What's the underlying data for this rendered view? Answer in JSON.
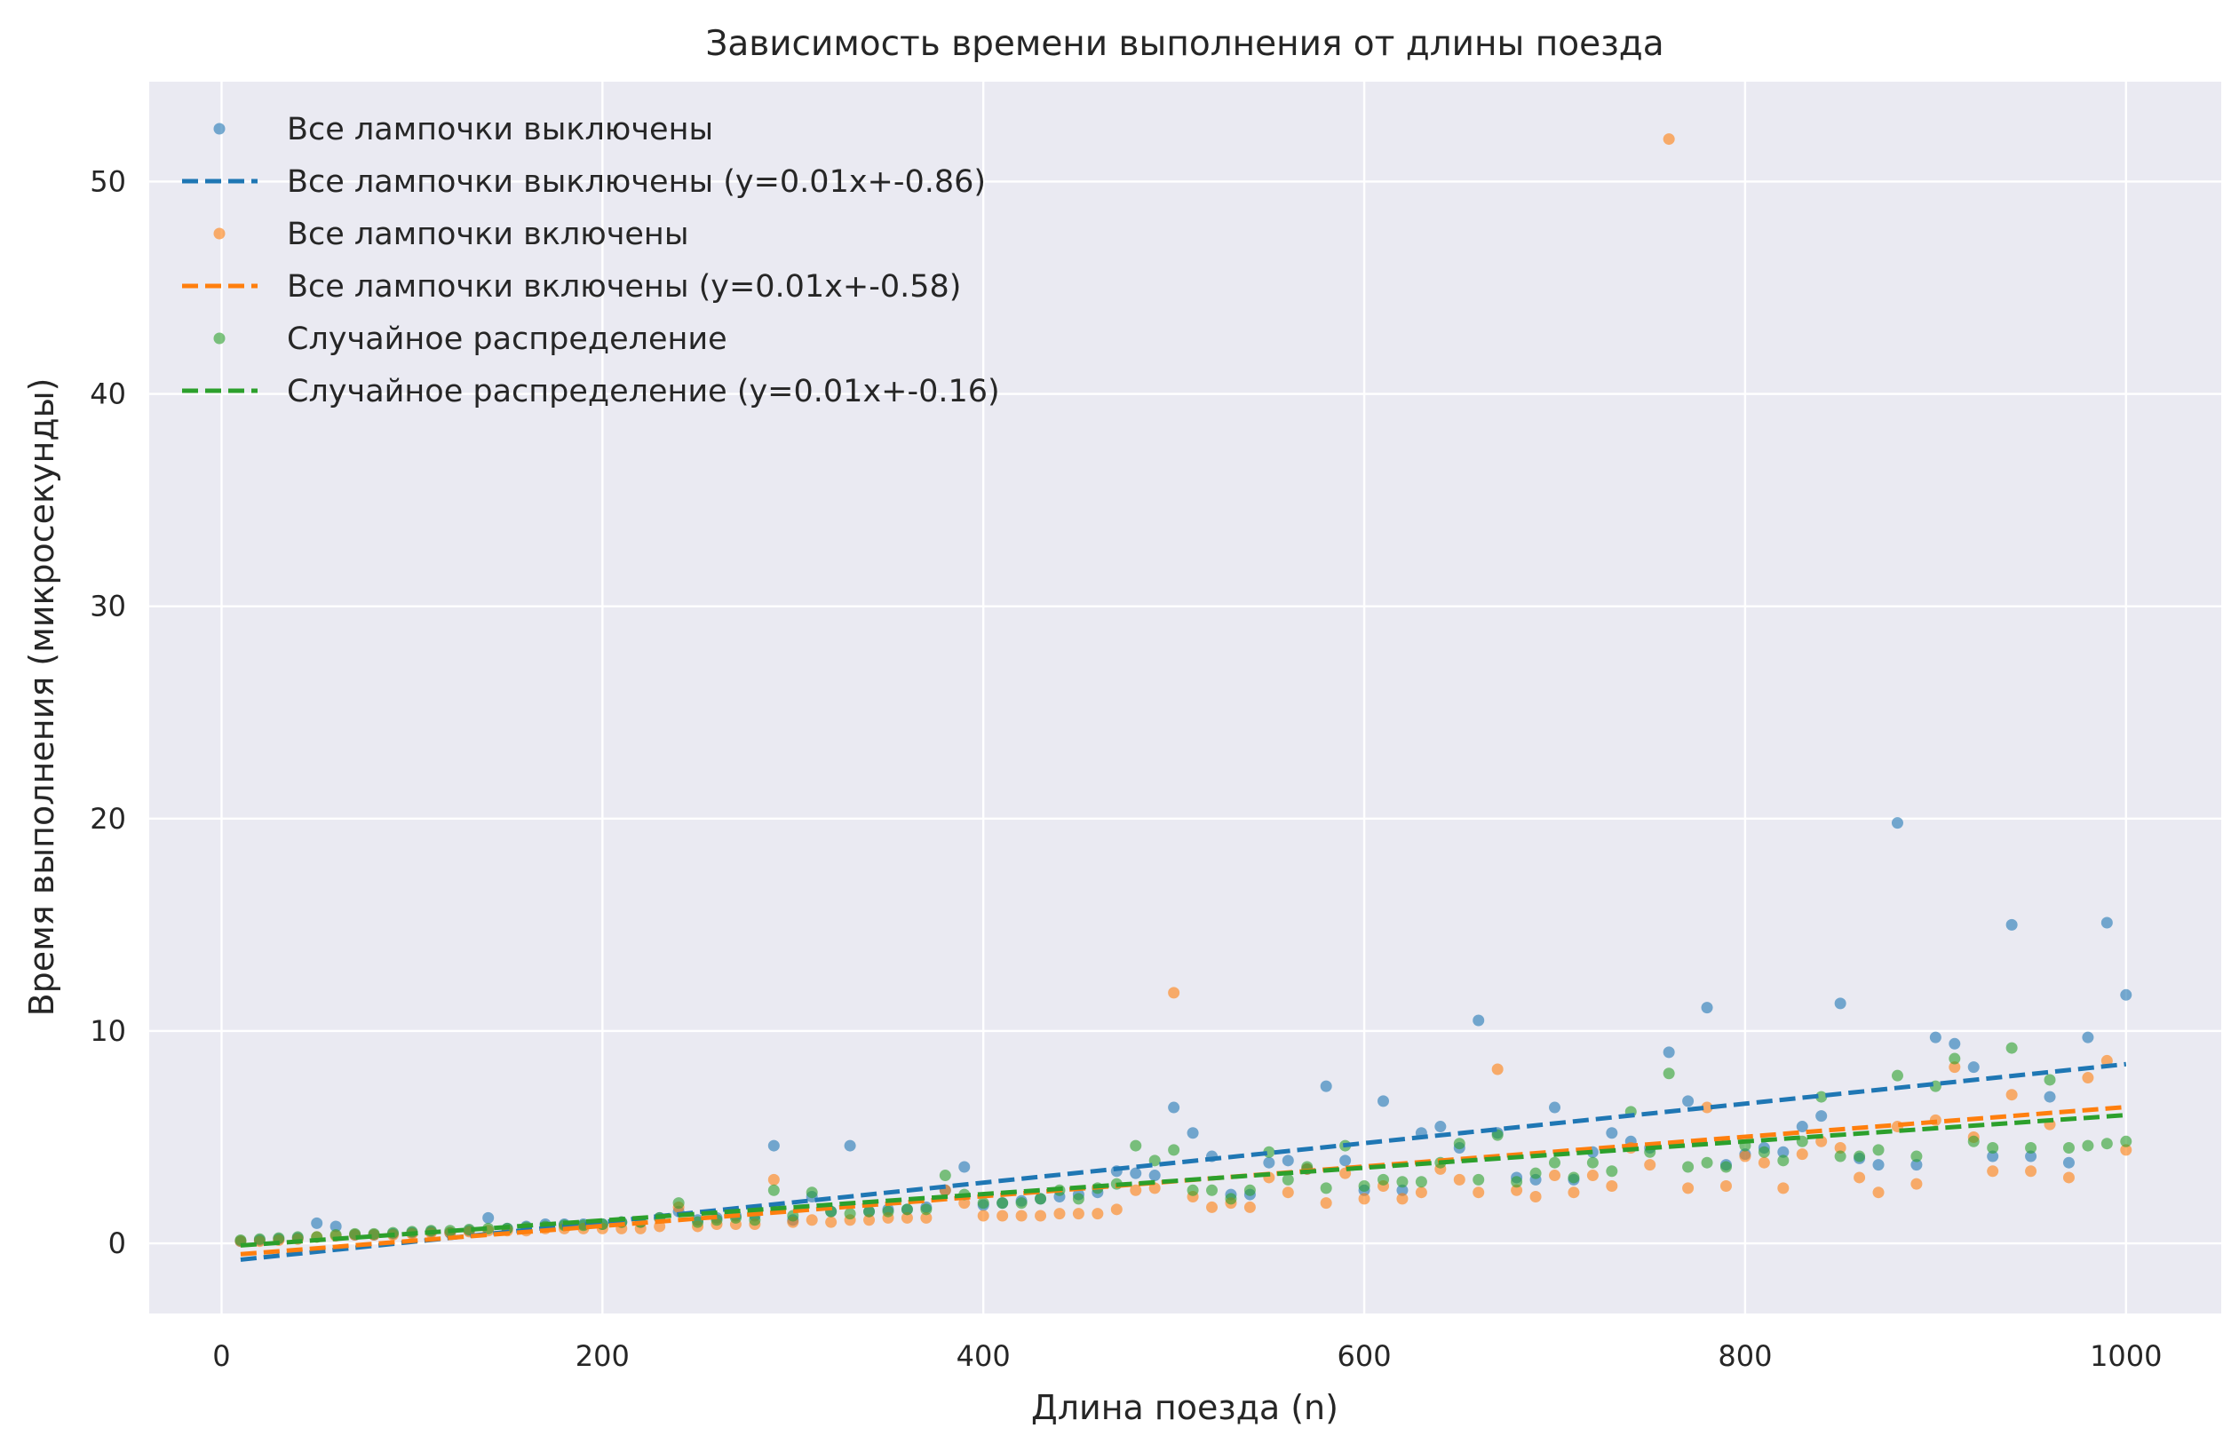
{
  "chart_data": {
    "type": "scatter",
    "title": "Зависимость времени выполнения от длины поезда",
    "xlabel": "Длина поезда (n)",
    "ylabel": "Время выполнения (микросекунды)",
    "xlim": [
      -38,
      1050
    ],
    "ylim": [
      -3.3,
      54.7
    ],
    "xticks": [
      0,
      200,
      400,
      600,
      800,
      1000
    ],
    "yticks": [
      0,
      10,
      20,
      30,
      40,
      50
    ],
    "grid": true,
    "legend": "top-left",
    "colors": {
      "background": "#eaeaf2",
      "grid": "#ffffff",
      "blue": "#1f77b4",
      "orange": "#ff7f0e",
      "green": "#2ca02c"
    },
    "series": [
      {
        "name": "Все лампочки выключены",
        "color": "#1f77b4",
        "fit_label": "Все лампочки выключены (y=0.01x+-0.86)",
        "fit": {
          "slope": 0.0093,
          "intercept": -0.86
        },
        "points": [
          [
            10,
            0.1
          ],
          [
            20,
            0.15
          ],
          [
            30,
            0.2
          ],
          [
            40,
            0.25
          ],
          [
            50,
            0.95
          ],
          [
            60,
            0.8
          ],
          [
            70,
            0.4
          ],
          [
            80,
            0.4
          ],
          [
            90,
            0.45
          ],
          [
            100,
            0.5
          ],
          [
            110,
            0.55
          ],
          [
            120,
            0.5
          ],
          [
            130,
            0.6
          ],
          [
            140,
            1.2
          ],
          [
            150,
            0.7
          ],
          [
            160,
            0.8
          ],
          [
            170,
            0.9
          ],
          [
            180,
            0.9
          ],
          [
            190,
            0.9
          ],
          [
            200,
            0.9
          ],
          [
            210,
            1.0
          ],
          [
            220,
            1.0
          ],
          [
            230,
            1.2
          ],
          [
            240,
            1.5
          ],
          [
            250,
            1.1
          ],
          [
            260,
            1.2
          ],
          [
            270,
            1.3
          ],
          [
            280,
            1.3
          ],
          [
            290,
            4.6
          ],
          [
            300,
            1.1
          ],
          [
            310,
            2.2
          ],
          [
            320,
            1.5
          ],
          [
            330,
            4.6
          ],
          [
            340,
            1.5
          ],
          [
            350,
            1.6
          ],
          [
            360,
            1.6
          ],
          [
            370,
            1.7
          ],
          [
            380,
            2.5
          ],
          [
            390,
            3.6
          ],
          [
            400,
            1.8
          ],
          [
            410,
            1.9
          ],
          [
            420,
            2.0
          ],
          [
            430,
            2.1
          ],
          [
            440,
            2.2
          ],
          [
            450,
            2.3
          ],
          [
            460,
            2.4
          ],
          [
            470,
            3.4
          ],
          [
            480,
            3.3
          ],
          [
            490,
            3.2
          ],
          [
            500,
            6.4
          ],
          [
            510,
            5.2
          ],
          [
            520,
            4.1
          ],
          [
            530,
            2.3
          ],
          [
            540,
            2.3
          ],
          [
            550,
            3.8
          ],
          [
            560,
            3.9
          ],
          [
            570,
            3.5
          ],
          [
            580,
            7.4
          ],
          [
            590,
            3.9
          ],
          [
            600,
            2.5
          ],
          [
            610,
            6.7
          ],
          [
            620,
            2.5
          ],
          [
            630,
            5.2
          ],
          [
            640,
            5.5
          ],
          [
            650,
            4.5
          ],
          [
            660,
            10.5
          ],
          [
            670,
            5.2
          ],
          [
            680,
            3.1
          ],
          [
            690,
            3.0
          ],
          [
            700,
            6.4
          ],
          [
            710,
            3.0
          ],
          [
            720,
            4.3
          ],
          [
            730,
            5.2
          ],
          [
            740,
            4.8
          ],
          [
            750,
            4.5
          ],
          [
            760,
            9.0
          ],
          [
            770,
            6.7
          ],
          [
            780,
            11.1
          ],
          [
            790,
            3.7
          ],
          [
            800,
            4.2
          ],
          [
            810,
            4.5
          ],
          [
            820,
            4.3
          ],
          [
            830,
            5.5
          ],
          [
            840,
            6.0
          ],
          [
            850,
            11.3
          ],
          [
            860,
            4.0
          ],
          [
            870,
            3.7
          ],
          [
            880,
            19.8
          ],
          [
            890,
            3.7
          ],
          [
            900,
            9.7
          ],
          [
            910,
            9.4
          ],
          [
            920,
            8.3
          ],
          [
            930,
            4.1
          ],
          [
            940,
            15.0
          ],
          [
            950,
            4.1
          ],
          [
            960,
            6.9
          ],
          [
            970,
            3.8
          ],
          [
            980,
            9.7
          ],
          [
            990,
            15.1
          ],
          [
            1000,
            11.7
          ]
        ]
      },
      {
        "name": "Все лампочки включены",
        "color": "#ff7f0e",
        "fit_label": "Все лампочки включены (y=0.01x+-0.58)",
        "fit": {
          "slope": 0.007,
          "intercept": -0.58
        },
        "points": [
          [
            10,
            0.1
          ],
          [
            20,
            0.1
          ],
          [
            30,
            0.15
          ],
          [
            40,
            0.2
          ],
          [
            50,
            0.3
          ],
          [
            60,
            0.35
          ],
          [
            70,
            0.4
          ],
          [
            80,
            0.4
          ],
          [
            90,
            0.4
          ],
          [
            100,
            0.45
          ],
          [
            110,
            0.5
          ],
          [
            120,
            0.5
          ],
          [
            130,
            0.55
          ],
          [
            140,
            0.6
          ],
          [
            150,
            0.6
          ],
          [
            160,
            0.6
          ],
          [
            170,
            0.7
          ],
          [
            180,
            0.7
          ],
          [
            190,
            0.7
          ],
          [
            200,
            0.7
          ],
          [
            210,
            0.7
          ],
          [
            220,
            0.7
          ],
          [
            230,
            0.8
          ],
          [
            240,
            1.7
          ],
          [
            250,
            0.8
          ],
          [
            260,
            0.9
          ],
          [
            270,
            0.9
          ],
          [
            280,
            0.9
          ],
          [
            290,
            3.0
          ],
          [
            300,
            1.0
          ],
          [
            310,
            1.1
          ],
          [
            320,
            1.0
          ],
          [
            330,
            1.1
          ],
          [
            340,
            1.1
          ],
          [
            350,
            1.2
          ],
          [
            360,
            1.2
          ],
          [
            370,
            1.2
          ],
          [
            380,
            2.5
          ],
          [
            390,
            1.9
          ],
          [
            400,
            1.3
          ],
          [
            410,
            1.3
          ],
          [
            420,
            1.3
          ],
          [
            430,
            1.3
          ],
          [
            440,
            1.4
          ],
          [
            450,
            1.4
          ],
          [
            460,
            1.4
          ],
          [
            470,
            1.6
          ],
          [
            480,
            2.5
          ],
          [
            490,
            2.6
          ],
          [
            500,
            11.8
          ],
          [
            510,
            2.2
          ],
          [
            520,
            1.7
          ],
          [
            530,
            1.9
          ],
          [
            540,
            1.7
          ],
          [
            550,
            3.1
          ],
          [
            560,
            2.4
          ],
          [
            570,
            3.5
          ],
          [
            580,
            1.9
          ],
          [
            590,
            3.3
          ],
          [
            600,
            2.1
          ],
          [
            610,
            2.7
          ],
          [
            620,
            2.1
          ],
          [
            630,
            2.4
          ],
          [
            640,
            3.5
          ],
          [
            650,
            3.0
          ],
          [
            660,
            2.4
          ],
          [
            670,
            8.2
          ],
          [
            680,
            2.5
          ],
          [
            690,
            2.2
          ],
          [
            700,
            3.2
          ],
          [
            710,
            2.4
          ],
          [
            720,
            3.2
          ],
          [
            730,
            2.7
          ],
          [
            740,
            4.5
          ],
          [
            750,
            3.7
          ],
          [
            760,
            52.0
          ],
          [
            770,
            2.6
          ],
          [
            780,
            6.4
          ],
          [
            790,
            2.7
          ],
          [
            800,
            4.1
          ],
          [
            810,
            3.8
          ],
          [
            820,
            2.6
          ],
          [
            830,
            4.2
          ],
          [
            840,
            4.8
          ],
          [
            850,
            4.5
          ],
          [
            860,
            3.1
          ],
          [
            870,
            2.4
          ],
          [
            880,
            5.5
          ],
          [
            890,
            2.8
          ],
          [
            900,
            5.8
          ],
          [
            910,
            8.3
          ],
          [
            920,
            5.0
          ],
          [
            930,
            3.4
          ],
          [
            940,
            7.0
          ],
          [
            950,
            3.4
          ],
          [
            960,
            5.6
          ],
          [
            970,
            3.1
          ],
          [
            980,
            7.8
          ],
          [
            990,
            8.6
          ],
          [
            1000,
            4.4
          ]
        ]
      },
      {
        "name": "Случайное распределение",
        "color": "#2ca02c",
        "fit_label": "Случайное распределение (y=0.01x+-0.16)",
        "fit": {
          "slope": 0.0062,
          "intercept": -0.16
        },
        "points": [
          [
            10,
            0.15
          ],
          [
            20,
            0.2
          ],
          [
            30,
            0.25
          ],
          [
            40,
            0.3
          ],
          [
            50,
            0.3
          ],
          [
            60,
            0.4
          ],
          [
            70,
            0.45
          ],
          [
            80,
            0.45
          ],
          [
            90,
            0.5
          ],
          [
            100,
            0.55
          ],
          [
            110,
            0.6
          ],
          [
            120,
            0.6
          ],
          [
            130,
            0.65
          ],
          [
            140,
            0.7
          ],
          [
            150,
            0.7
          ],
          [
            160,
            0.75
          ],
          [
            170,
            0.8
          ],
          [
            180,
            0.85
          ],
          [
            190,
            0.85
          ],
          [
            200,
            0.9
          ],
          [
            210,
            1.0
          ],
          [
            220,
            1.0
          ],
          [
            230,
            1.2
          ],
          [
            240,
            1.9
          ],
          [
            250,
            1.0
          ],
          [
            260,
            1.1
          ],
          [
            270,
            1.2
          ],
          [
            280,
            1.1
          ],
          [
            290,
            2.5
          ],
          [
            300,
            1.3
          ],
          [
            310,
            2.4
          ],
          [
            320,
            1.5
          ],
          [
            330,
            1.4
          ],
          [
            340,
            1.5
          ],
          [
            350,
            1.5
          ],
          [
            360,
            1.6
          ],
          [
            370,
            1.6
          ],
          [
            380,
            3.2
          ],
          [
            390,
            2.3
          ],
          [
            400,
            1.9
          ],
          [
            410,
            1.9
          ],
          [
            420,
            1.9
          ],
          [
            430,
            2.1
          ],
          [
            440,
            2.5
          ],
          [
            450,
            2.1
          ],
          [
            460,
            2.6
          ],
          [
            470,
            2.8
          ],
          [
            480,
            4.6
          ],
          [
            490,
            3.9
          ],
          [
            500,
            4.4
          ],
          [
            510,
            2.5
          ],
          [
            520,
            2.5
          ],
          [
            530,
            2.1
          ],
          [
            540,
            2.5
          ],
          [
            550,
            4.3
          ],
          [
            560,
            3.0
          ],
          [
            570,
            3.6
          ],
          [
            580,
            2.6
          ],
          [
            590,
            4.6
          ],
          [
            600,
            2.7
          ],
          [
            610,
            3.0
          ],
          [
            620,
            2.9
          ],
          [
            630,
            2.9
          ],
          [
            640,
            3.8
          ],
          [
            650,
            4.7
          ],
          [
            660,
            3.0
          ],
          [
            670,
            5.1
          ],
          [
            680,
            2.9
          ],
          [
            690,
            3.3
          ],
          [
            700,
            3.8
          ],
          [
            710,
            3.1
          ],
          [
            720,
            3.8
          ],
          [
            730,
            3.4
          ],
          [
            740,
            6.2
          ],
          [
            750,
            4.3
          ],
          [
            760,
            8.0
          ],
          [
            770,
            3.6
          ],
          [
            780,
            3.8
          ],
          [
            790,
            3.6
          ],
          [
            800,
            4.6
          ],
          [
            810,
            4.3
          ],
          [
            820,
            3.9
          ],
          [
            830,
            4.8
          ],
          [
            840,
            6.9
          ],
          [
            850,
            4.1
          ],
          [
            860,
            4.1
          ],
          [
            870,
            4.4
          ],
          [
            880,
            7.9
          ],
          [
            890,
            4.1
          ],
          [
            900,
            7.4
          ],
          [
            910,
            8.7
          ],
          [
            920,
            4.8
          ],
          [
            930,
            4.5
          ],
          [
            940,
            9.2
          ],
          [
            950,
            4.5
          ],
          [
            960,
            7.7
          ],
          [
            970,
            4.5
          ],
          [
            980,
            4.6
          ],
          [
            990,
            4.7
          ],
          [
            1000,
            4.8
          ]
        ]
      }
    ]
  }
}
